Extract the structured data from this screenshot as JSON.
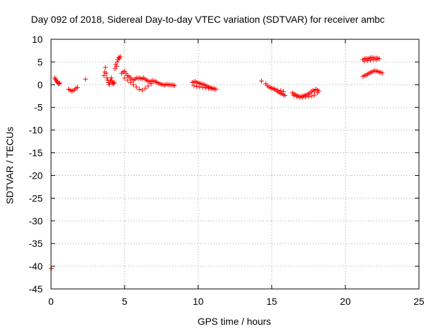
{
  "chart_data": {
    "type": "scatter",
    "title": "Day 092 of 2018, Sidereal Day-to-day VTEC variation (SDTVAR) for receiver ambc",
    "xlabel": "GPS time / hours",
    "ylabel": "SDTVAR / TECUs",
    "xlim": [
      0,
      25
    ],
    "ylim": [
      -45,
      10
    ],
    "x_ticks": [
      0,
      5,
      10,
      15,
      20,
      25
    ],
    "x_tick_labels": [
      "0",
      "5",
      "10",
      "15",
      "20",
      "25"
    ],
    "y_ticks": [
      10,
      5,
      0,
      -5,
      -10,
      -15,
      -20,
      -25,
      -30,
      -35,
      -40,
      -45
    ],
    "y_tick_labels": [
      "10",
      "5",
      "0",
      "-5",
      "-10",
      "-15",
      "-20",
      "-25",
      "-30",
      "-35",
      "-40",
      "-45"
    ],
    "grid": true,
    "marker": "+",
    "color": "#ff0000",
    "series": [
      {
        "name": "SDTVAR",
        "x": [
          0.02,
          0.25,
          0.3,
          0.35,
          0.4,
          0.45,
          0.5,
          0.55,
          0.6,
          1.2,
          1.3,
          1.4,
          1.5,
          1.6,
          1.7,
          1.8,
          2.35,
          3.6,
          3.65,
          3.7,
          3.75,
          3.8,
          3.85,
          3.9,
          3.95,
          4.0,
          4.05,
          4.1,
          4.15,
          4.2,
          4.25,
          4.3,
          4.35,
          4.4,
          4.45,
          4.5,
          4.55,
          4.6,
          4.65,
          4.7,
          4.8,
          4.9,
          5.0,
          5.1,
          5.2,
          5.3,
          5.4,
          5.5,
          5.6,
          5.7,
          5.8,
          5.9,
          6.0,
          6.1,
          6.2,
          6.3,
          6.4,
          6.5,
          6.6,
          6.7,
          6.8,
          6.9,
          7.0,
          7.1,
          7.2,
          7.3,
          7.4,
          7.5,
          7.6,
          7.7,
          7.8,
          7.9,
          8.0,
          8.1,
          8.2,
          8.3,
          8.4,
          5.0,
          5.2,
          5.4,
          5.6,
          5.8,
          6.0,
          6.2,
          6.4,
          6.6,
          6.8,
          9.6,
          9.7,
          9.8,
          9.9,
          10.0,
          10.1,
          10.2,
          10.3,
          10.4,
          10.5,
          10.6,
          10.7,
          10.8,
          10.9,
          11.0,
          11.1,
          11.2,
          9.7,
          9.9,
          10.1,
          10.3,
          10.5,
          10.7,
          10.9,
          11.1,
          14.3,
          14.6,
          14.7,
          14.8,
          14.9,
          15.0,
          15.1,
          15.2,
          15.3,
          15.4,
          15.5,
          15.6,
          15.7,
          15.8,
          15.9,
          15.0,
          15.2,
          15.4,
          15.6,
          15.8,
          16.4,
          16.5,
          16.6,
          16.7,
          16.8,
          16.9,
          17.0,
          17.1,
          17.2,
          17.3,
          17.4,
          17.5,
          17.6,
          17.7,
          17.8,
          17.9,
          18.0,
          18.1,
          18.2,
          16.5,
          16.7,
          16.9,
          17.1,
          17.3,
          17.5,
          17.7,
          17.9,
          18.1,
          21.2,
          21.3,
          21.4,
          21.5,
          21.6,
          21.7,
          21.8,
          21.9,
          22.0,
          22.1,
          22.2,
          22.3,
          21.3,
          21.5,
          21.7,
          21.9,
          22.1,
          21.2,
          21.3,
          21.4,
          21.5,
          21.6,
          21.7,
          21.8,
          21.9,
          22.0,
          22.1,
          22.2,
          22.3,
          22.4,
          22.5
        ],
        "y": [
          -40.5,
          1.5,
          1.2,
          1.0,
          0.7,
          0.5,
          0.3,
          0.2,
          0.4,
          -1.0,
          -1.2,
          -1.4,
          -1.3,
          -1.1,
          -0.8,
          -0.6,
          1.2,
          2.0,
          2.8,
          3.8,
          2.5,
          1.5,
          1.0,
          0.5,
          0.0,
          0.5,
          1.0,
          1.5,
          0.8,
          0.3,
          0.2,
          0.5,
          3.5,
          4.5,
          4.0,
          5.0,
          5.5,
          6.0,
          5.8,
          6.2,
          2.5,
          2.8,
          3.0,
          2.5,
          2.0,
          1.8,
          1.5,
          1.2,
          1.0,
          1.2,
          1.5,
          1.4,
          1.5,
          1.4,
          1.3,
          1.5,
          1.2,
          1.0,
          0.8,
          0.6,
          0.8,
          0.9,
          0.8,
          0.7,
          0.5,
          0.3,
          0.2,
          0.1,
          0.0,
          -0.1,
          0.0,
          0.1,
          0.0,
          -0.1,
          0.0,
          -0.1,
          -0.2,
          1.5,
          1.0,
          0.5,
          0.0,
          -0.5,
          -1.0,
          -1.2,
          -0.8,
          -0.3,
          0.2,
          0.5,
          0.6,
          0.7,
          0.5,
          0.4,
          0.3,
          0.2,
          0.1,
          0.0,
          -0.2,
          -0.3,
          -0.5,
          -0.6,
          -0.7,
          -0.8,
          -0.9,
          -1.0,
          -0.2,
          -0.4,
          -0.5,
          -0.6,
          -0.7,
          -0.8,
          -0.9,
          -1.0,
          0.8,
          0.2,
          -0.2,
          -0.5,
          -0.6,
          -0.8,
          -0.9,
          -1.0,
          -1.2,
          -1.5,
          -1.7,
          -1.9,
          -2.0,
          -2.2,
          -2.4,
          -0.8,
          -1.0,
          -1.2,
          -1.3,
          -1.5,
          -1.8,
          -2.0,
          -2.2,
          -2.4,
          -2.5,
          -2.6,
          -2.6,
          -2.5,
          -2.4,
          -2.3,
          -2.2,
          -2.0,
          -1.8,
          -1.5,
          -1.2,
          -1.4,
          -1.0,
          -1.2,
          -1.4,
          -2.4,
          -2.6,
          -2.8,
          -2.8,
          -2.7,
          -2.6,
          -2.5,
          -2.3,
          -1.8,
          5.5,
          5.7,
          5.8,
          5.7,
          5.8,
          5.9,
          6.0,
          5.9,
          5.8,
          5.9,
          5.8,
          5.7,
          5.2,
          5.3,
          5.4,
          5.5,
          5.5,
          1.8,
          2.0,
          2.1,
          2.3,
          2.5,
          2.7,
          2.8,
          3.0,
          3.1,
          3.0,
          2.9,
          2.8,
          2.7,
          2.6
        ]
      }
    ]
  }
}
